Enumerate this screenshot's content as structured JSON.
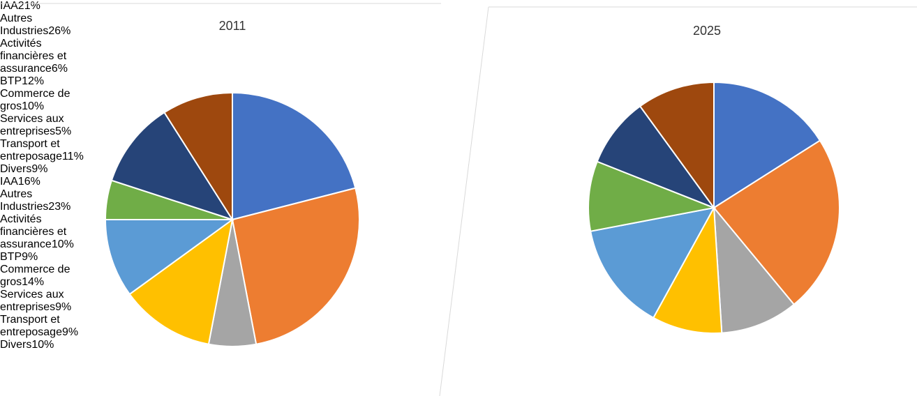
{
  "chart_data": [
    {
      "type": "pie",
      "title": "2011",
      "categories": [
        "IAA",
        "Autres Industries",
        "Activités financières et assurance",
        "BTP",
        "Commerce de gros",
        "Services aux entreprises",
        "Transport et entreposage",
        "Divers"
      ],
      "values": [
        21,
        26,
        6,
        12,
        10,
        5,
        11,
        9
      ],
      "value_labels": [
        "21%",
        "26%",
        "6%",
        "12%",
        "10%",
        "5%",
        "11%",
        "9%"
      ],
      "colors": [
        "#4472c4",
        "#ed7d31",
        "#a5a5a5",
        "#ffc000",
        "#5b9bd5",
        "#70ad47",
        "#264478",
        "#9e480e"
      ]
    },
    {
      "type": "pie",
      "title": "2025",
      "categories": [
        "IAA",
        "Autres Industries",
        "Activités financières et assurance",
        "BTP",
        "Commerce de gros",
        "Services aux entreprises",
        "Transport et entreposage",
        "Divers"
      ],
      "values": [
        16,
        23,
        10,
        9,
        14,
        9,
        9,
        10
      ],
      "value_labels": [
        "16%",
        "23%",
        "10%",
        "9%",
        "14%",
        "9%",
        "9%",
        "10%"
      ],
      "colors": [
        "#4472c4",
        "#ed7d31",
        "#a5a5a5",
        "#ffc000",
        "#5b9bd5",
        "#70ad47",
        "#264478",
        "#9e480e"
      ]
    }
  ]
}
